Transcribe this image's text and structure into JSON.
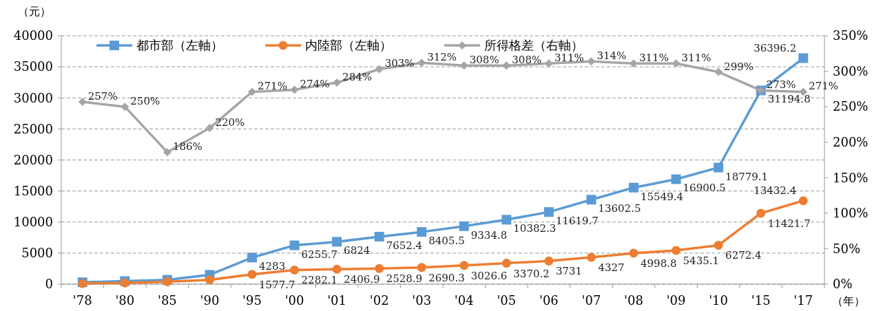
{
  "chart_data": {
    "type": "line",
    "ylabel": "（元）",
    "xlabel": "（年）",
    "categories": [
      "'78",
      "'80",
      "'85",
      "'90",
      "'95",
      "'00",
      "'01",
      "'02",
      "'03",
      "'04",
      "'05",
      "'06",
      "'07",
      "'08",
      "'09",
      "'10",
      "'15",
      "'17"
    ],
    "series": [
      {
        "name": "都市部（左軸）",
        "color": "#5b9bd5",
        "marker": "square",
        "values": [
          300,
          500,
          700,
          1500,
          4283,
          6255.7,
          6824,
          7652.4,
          8405.5,
          9334.8,
          10382.3,
          11619.7,
          13602.5,
          15549.4,
          16900.5,
          18779.1,
          31194.8,
          36396.2
        ],
        "value_labels": [
          null,
          null,
          null,
          null,
          "4283",
          "6255.7",
          "6824",
          "7652.4",
          "8405.5",
          "9334.8",
          "10382.3",
          "11619.7",
          "13602.5",
          "15549.4",
          "16900.5",
          "18779.1",
          "31194.8",
          "36396.2"
        ]
      },
      {
        "name": "内陸部（左軸）",
        "color": "#ed7d31",
        "marker": "circle",
        "values": [
          100,
          200,
          400,
          700,
          1577.7,
          2282.1,
          2406.9,
          2528.9,
          2690.3,
          3026.6,
          3370.2,
          3731,
          4327,
          4998.8,
          5435.1,
          6272.4,
          11421.7,
          13432.4
        ],
        "value_labels": [
          null,
          null,
          null,
          null,
          "1577.7",
          "2282.1",
          "2406.9",
          "2528.9",
          "2690.3",
          "3026.6",
          "3370.2",
          "3731",
          "4327",
          "4998.8",
          "5435.1",
          "6272.4",
          "11421.7",
          "13432.4"
        ]
      },
      {
        "name": "所得格差（右軸）",
        "color": "#a5a5a5",
        "marker": "diamond",
        "axis": "y2",
        "values": [
          257,
          250,
          186,
          220,
          271,
          274,
          284,
          303,
          312,
          308,
          308,
          311,
          314,
          311,
          311,
          299,
          273,
          271
        ],
        "value_labels": [
          "257%",
          "250%",
          "186%",
          "220%",
          "271%",
          "274%",
          "284%",
          "303%",
          "312%",
          "308%",
          "308%",
          "311%",
          "314%",
          "311%",
          "311%",
          "299%",
          "273%",
          "271%"
        ]
      }
    ],
    "ylim": [
      0,
      40000
    ],
    "yticks": [
      0,
      5000,
      10000,
      15000,
      20000,
      25000,
      30000,
      35000,
      40000
    ],
    "y2lim": [
      0,
      350
    ],
    "y2ticks": [
      {
        "value": 0,
        "label": "0%"
      },
      {
        "value": 50,
        "label": "50%"
      },
      {
        "value": 100,
        "label": "100%"
      },
      {
        "value": 150,
        "label": "150%"
      },
      {
        "value": 200,
        "label": "200%"
      },
      {
        "value": 250,
        "label": "250%"
      },
      {
        "value": 300,
        "label": "300%"
      },
      {
        "value": 350,
        "label": "350%"
      }
    ],
    "grid": "y",
    "legend": "top",
    "line_style": "solid"
  }
}
